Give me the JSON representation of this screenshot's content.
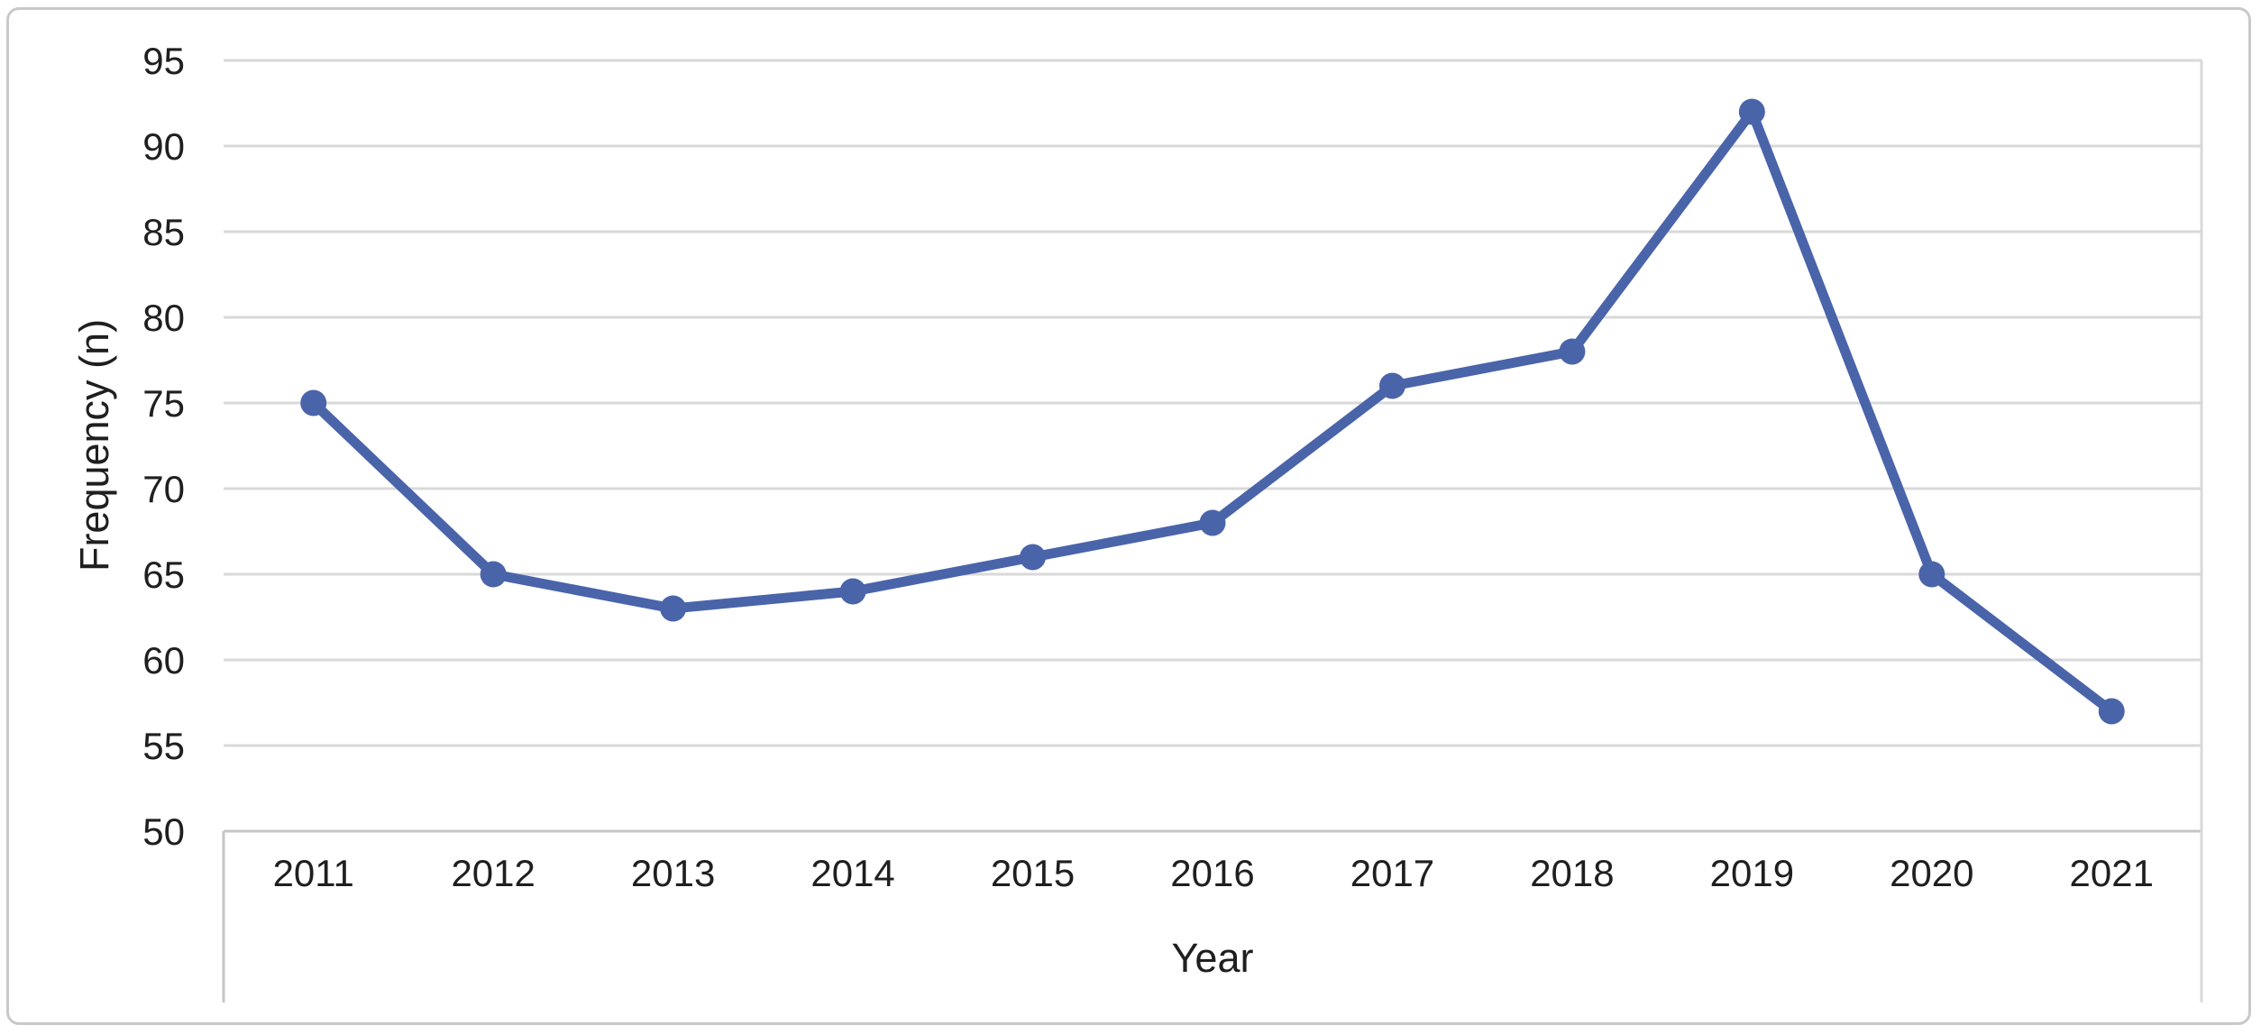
{
  "chart_data": {
    "type": "line",
    "title": "",
    "xlabel": "Year",
    "ylabel": "Frequency (n)",
    "categories": [
      "2011",
      "2012",
      "2013",
      "2014",
      "2015",
      "2016",
      "2017",
      "2018",
      "2019",
      "2020",
      "2021"
    ],
    "series": [
      {
        "name": "Frequency (n)",
        "values": [
          75,
          65,
          63,
          64,
          66,
          68,
          76,
          78,
          92,
          65,
          57
        ]
      }
    ],
    "ylim": [
      50,
      95
    ],
    "ytick_step": 5,
    "ytick_labels": [
      "50",
      "55",
      "60",
      "65",
      "70",
      "75",
      "80",
      "85",
      "90",
      "95"
    ],
    "grid": "horizontal",
    "legend": "none",
    "marker": "circle",
    "colors": {
      "line": "#4a64aa",
      "marker": "#4a64aa",
      "gridline": "#d9d9d9",
      "axis_line": "#c6c6c6",
      "text": "#1f1f1f",
      "frame_border": "#c9c9c9",
      "background": "#ffffff"
    }
  }
}
